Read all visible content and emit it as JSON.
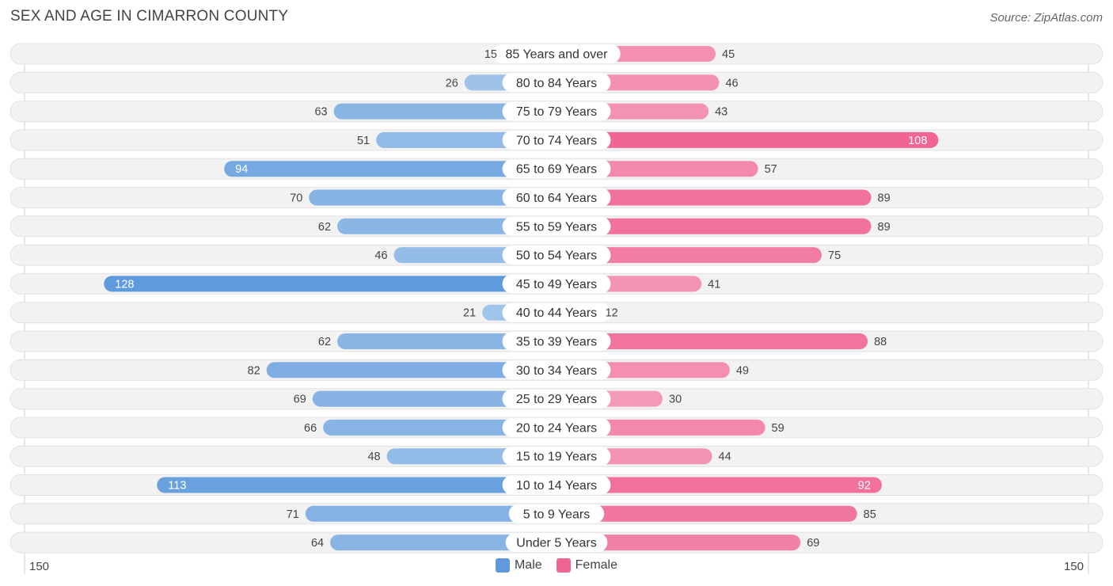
{
  "header": {
    "title": "SEX AND AGE IN CIMARRON COUNTY",
    "source": "Source: ZipAtlas.com"
  },
  "colors": {
    "male_dark": "#5f9bdc",
    "male_light": "#a9c9ec",
    "female_dark": "#f06592",
    "female_light": "#f6a9c1",
    "row_bg": "#f2f2f2"
  },
  "chart_data": {
    "type": "bar",
    "orientation": "horizontal-diverging",
    "title": "SEX AND AGE IN CIMARRON COUNTY",
    "categories": [
      "85 Years and over",
      "80 to 84 Years",
      "75 to 79 Years",
      "70 to 74 Years",
      "65 to 69 Years",
      "60 to 64 Years",
      "55 to 59 Years",
      "50 to 54 Years",
      "45 to 49 Years",
      "40 to 44 Years",
      "35 to 39 Years",
      "30 to 34 Years",
      "25 to 29 Years",
      "20 to 24 Years",
      "15 to 19 Years",
      "10 to 14 Years",
      "5 to 9 Years",
      "Under 5 Years"
    ],
    "series": [
      {
        "name": "Male",
        "values": [
          15,
          26,
          63,
          51,
          94,
          70,
          62,
          46,
          128,
          21,
          62,
          82,
          69,
          66,
          48,
          113,
          71,
          64
        ]
      },
      {
        "name": "Female",
        "values": [
          45,
          46,
          43,
          108,
          57,
          89,
          89,
          75,
          41,
          12,
          88,
          49,
          30,
          59,
          44,
          92,
          85,
          69
        ]
      }
    ],
    "xlim": [
      -150,
      150
    ],
    "axis_labels": {
      "left": "150",
      "right": "150"
    },
    "legend": [
      "Male",
      "Female"
    ]
  }
}
